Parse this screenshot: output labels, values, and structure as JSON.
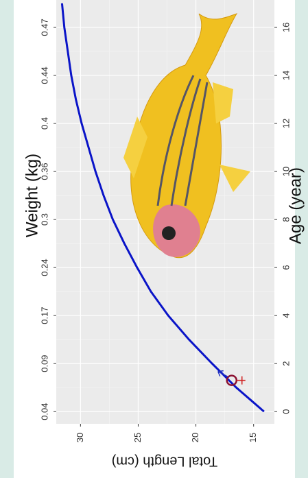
{
  "chart_data": {
    "type": "line",
    "x_label": "Age (year)",
    "y_label": "Total Length (cm)",
    "x2_label": "Weight (kg)",
    "x": [
      0,
      1,
      2,
      3,
      4,
      5,
      6,
      7,
      8,
      9,
      10,
      11,
      12,
      13,
      14,
      15,
      16,
      17
    ],
    "series": [
      {
        "color": "#0a14c8",
        "values": [
          14.1,
          16.5,
          18.6,
          20.6,
          22.4,
          23.9,
          25.1,
          26.2,
          27.2,
          28.0,
          28.7,
          29.3,
          29.9,
          30.4,
          30.8,
          31.1,
          31.4,
          31.6
        ]
      }
    ],
    "xlim": [
      -0.51,
      17.14
    ],
    "ylim": [
      13.2,
      32.1
    ],
    "xticks": [
      0,
      2,
      4,
      6,
      8,
      10,
      12,
      14,
      16
    ],
    "yticks": [
      15,
      20,
      25,
      30
    ],
    "x2ticks": [
      0.04,
      0.09,
      0.17,
      0.24,
      0.3,
      0.36,
      0.4,
      0.44,
      0.47
    ],
    "marker": {
      "x": 1.3,
      "y": 16.9
    },
    "grid": true
  }
}
